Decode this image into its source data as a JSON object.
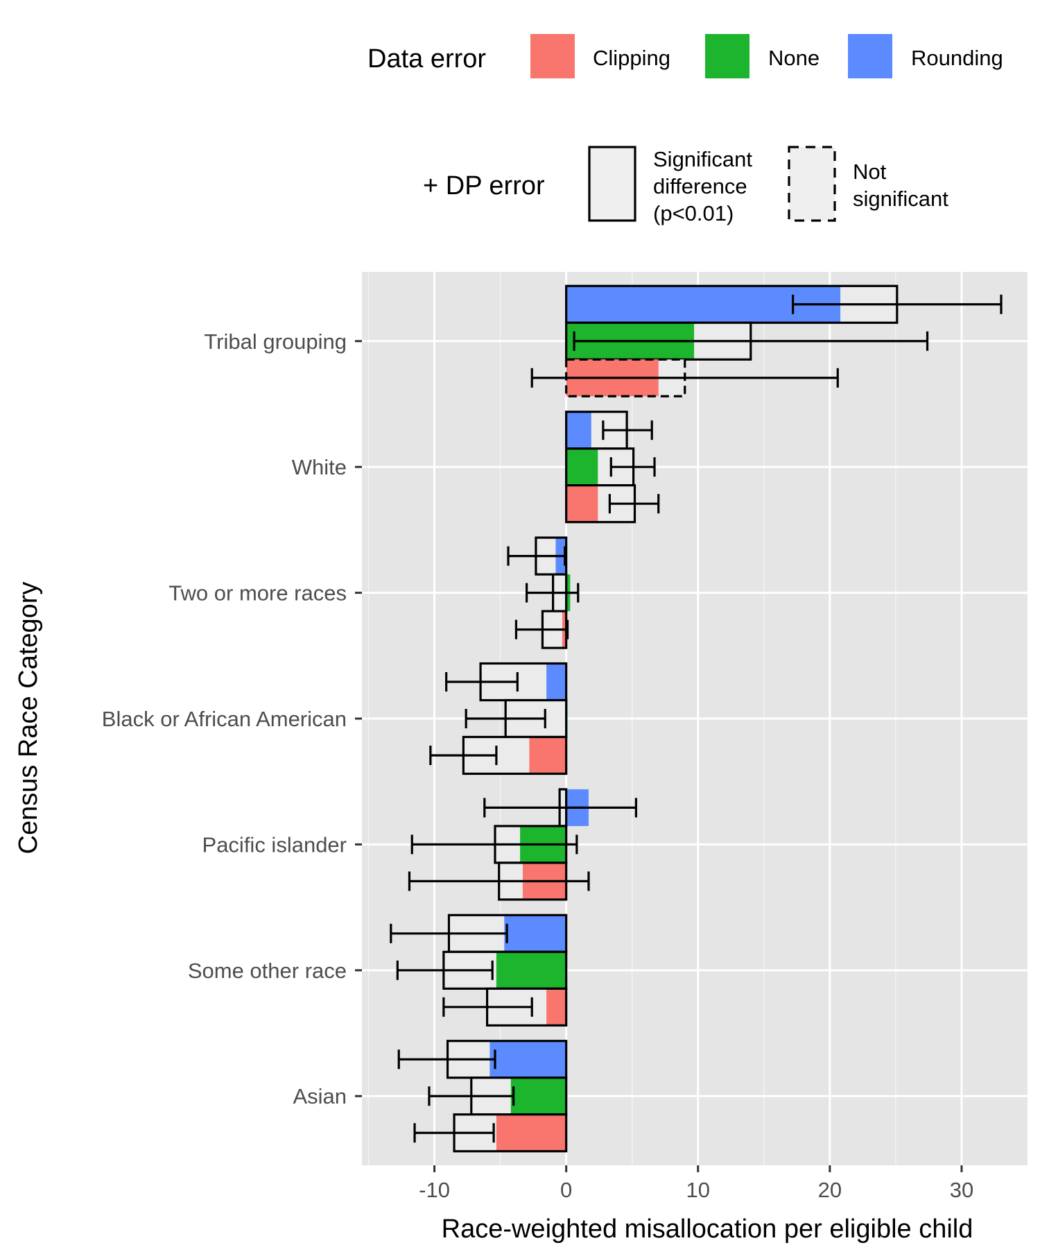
{
  "legend": {
    "data_error_title": "Data error",
    "data_error_items": [
      {
        "label": "Clipping",
        "color": "#F8766D"
      },
      {
        "label": "None",
        "color": "#1DB42E"
      },
      {
        "label": "Rounding",
        "color": "#5B8BFF"
      }
    ],
    "dp_title": "+ DP error",
    "dp_items": [
      {
        "lines": [
          "Significant",
          "difference",
          "(p<0.01)"
        ],
        "style": "solid"
      },
      {
        "lines": [
          "Not",
          "significant"
        ],
        "style": "dashed"
      }
    ]
  },
  "chart_data": {
    "type": "bar",
    "orientation": "horizontal",
    "xlabel": "Race-weighted misallocation per eligible child",
    "ylabel": "Census Race Category",
    "xlim": [
      -15.5,
      35
    ],
    "xticks": [
      -10,
      0,
      10,
      20,
      30
    ],
    "xtick_labels": [
      "-10",
      "0",
      "10",
      "20",
      "30"
    ],
    "grid": true,
    "legend_position": "top",
    "categories": [
      "Tribal grouping",
      "White",
      "Two or more races",
      "Black or African American",
      "Pacific islander",
      "Some other race",
      "Asian"
    ],
    "series_order_top_to_bottom": [
      "Rounding",
      "None",
      "Clipping"
    ],
    "series_colors": {
      "Clipping": "#F8766D",
      "None": "#1DB42E",
      "Rounding": "#5B8BFF"
    },
    "data_error": {
      "Tribal grouping": {
        "Rounding": 20.8,
        "None": 9.7,
        "Clipping": 7.0
      },
      "White": {
        "Rounding": 1.9,
        "None": 2.4,
        "Clipping": 2.4
      },
      "Two or more races": {
        "Rounding": -0.8,
        "None": 0.3,
        "Clipping": -0.3
      },
      "Black or African American": {
        "Rounding": -1.5,
        "None": 0.1,
        "Clipping": -2.8
      },
      "Pacific islander": {
        "Rounding": 1.7,
        "None": -3.5,
        "Clipping": -3.3
      },
      "Some other race": {
        "Rounding": -4.7,
        "None": -5.3,
        "Clipping": -1.5
      },
      "Asian": {
        "Rounding": -5.8,
        "None": -4.2,
        "Clipping": -5.3
      }
    },
    "dp_error": {
      "Tribal grouping": {
        "Rounding": {
          "value": 25.1,
          "lo": 17.2,
          "hi": 33.0,
          "significant": true
        },
        "None": {
          "value": 14.0,
          "lo": 0.6,
          "hi": 27.4,
          "significant": true
        },
        "Clipping": {
          "value": 9.0,
          "lo": -2.6,
          "hi": 20.6,
          "significant": false
        }
      },
      "White": {
        "Rounding": {
          "value": 4.6,
          "lo": 2.8,
          "hi": 6.5,
          "significant": true
        },
        "None": {
          "value": 5.1,
          "lo": 3.4,
          "hi": 6.7,
          "significant": true
        },
        "Clipping": {
          "value": 5.2,
          "lo": 3.3,
          "hi": 7.0,
          "significant": true
        }
      },
      "Two or more races": {
        "Rounding": {
          "value": -2.3,
          "lo": -4.4,
          "hi": -0.1,
          "significant": true
        },
        "None": {
          "value": -1.0,
          "lo": -3.0,
          "hi": 0.9,
          "significant": true
        },
        "Clipping": {
          "value": -1.8,
          "lo": -3.8,
          "hi": 0.1,
          "significant": true
        }
      },
      "Black or African American": {
        "Rounding": {
          "value": -6.5,
          "lo": -9.1,
          "hi": -3.7,
          "significant": true
        },
        "None": {
          "value": -4.6,
          "lo": -7.6,
          "hi": -1.6,
          "significant": true
        },
        "Clipping": {
          "value": -7.8,
          "lo": -10.3,
          "hi": -5.3,
          "significant": true
        }
      },
      "Pacific islander": {
        "Rounding": {
          "value": -0.5,
          "lo": -6.2,
          "hi": 5.3,
          "significant": true
        },
        "None": {
          "value": -5.4,
          "lo": -11.7,
          "hi": 0.8,
          "significant": true
        },
        "Clipping": {
          "value": -5.1,
          "lo": -11.9,
          "hi": 1.7,
          "significant": true
        }
      },
      "Some other race": {
        "Rounding": {
          "value": -8.9,
          "lo": -13.3,
          "hi": -4.5,
          "significant": true
        },
        "None": {
          "value": -9.3,
          "lo": -12.8,
          "hi": -5.6,
          "significant": true
        },
        "Clipping": {
          "value": -6.0,
          "lo": -9.3,
          "hi": -2.6,
          "significant": true
        }
      },
      "Asian": {
        "Rounding": {
          "value": -9.0,
          "lo": -12.7,
          "hi": -5.4,
          "significant": true
        },
        "None": {
          "value": -7.2,
          "lo": -10.4,
          "hi": -4.0,
          "significant": true
        },
        "Clipping": {
          "value": -8.5,
          "lo": -11.5,
          "hi": -5.5,
          "significant": true
        }
      }
    }
  }
}
